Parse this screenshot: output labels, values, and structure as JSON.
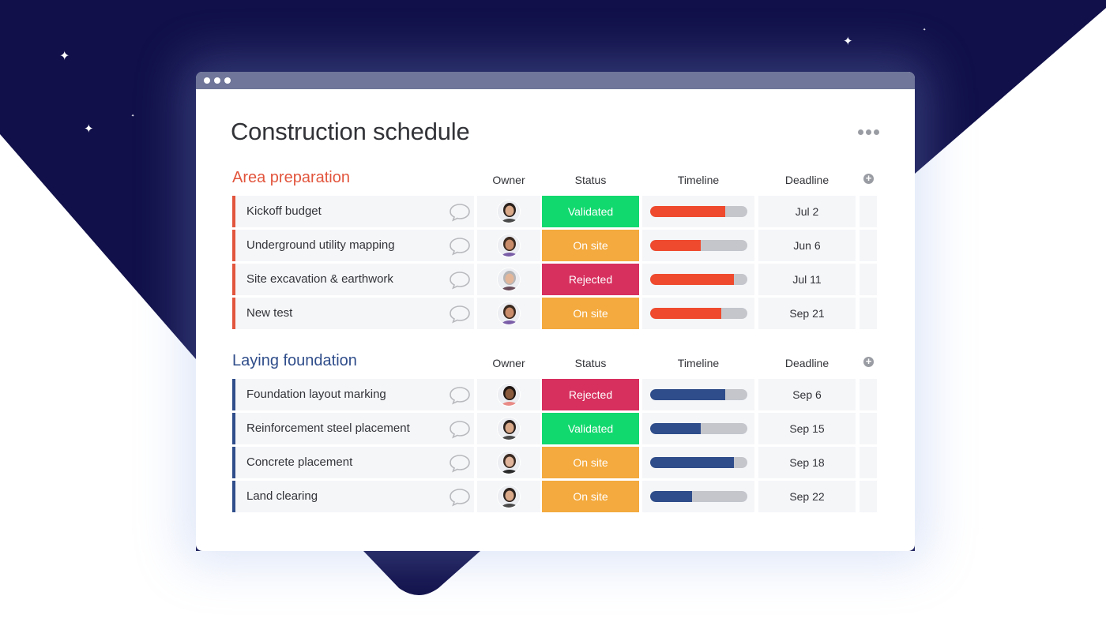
{
  "window": {
    "title": "Construction schedule",
    "titlebar_dots": 3
  },
  "columns": {
    "owner": "Owner",
    "status": "Status",
    "timeline": "Timeline",
    "deadline": "Deadline"
  },
  "colors": {
    "background_navy": "#11104a",
    "titlebar": "#6f7699",
    "group1_accent": "#e2553d",
    "group2_accent": "#2f4d8a",
    "status_validated": "#12d96e",
    "status_on_site": "#f4aa3e",
    "status_rejected": "#d72f5e",
    "timeline_red": "#ef4a2e",
    "timeline_blue": "#2f4d8a",
    "timeline_track": "#c4c6cc"
  },
  "groups": [
    {
      "title": "Area preparation",
      "color": "#e2553d",
      "rows": [
        {
          "name": "Kickoff budget",
          "owner": "woman-dark-hair",
          "status": "Validated",
          "status_color": "#12d96e",
          "timeline_pct": 77,
          "deadline": "Jul 2"
        },
        {
          "name": "Underground utility mapping",
          "owner": "man-smiling",
          "status": "On site",
          "status_color": "#f4aa3e",
          "timeline_pct": 52,
          "deadline": "Jun 6"
        },
        {
          "name": "Site excavation & earthwork",
          "owner": "man-bald",
          "status": "Rejected",
          "status_color": "#d72f5e",
          "timeline_pct": 86,
          "deadline": "Jul 11"
        },
        {
          "name": "New test",
          "owner": "man-smiling",
          "status": "On site",
          "status_color": "#f4aa3e",
          "timeline_pct": 73,
          "deadline": "Sep 21"
        }
      ]
    },
    {
      "title": "Laying foundation",
      "color": "#2f4d8a",
      "rows": [
        {
          "name": "Foundation layout marking",
          "owner": "man-short-hair",
          "status": "Rejected",
          "status_color": "#d72f5e",
          "timeline_pct": 77,
          "deadline": "Sep 6"
        },
        {
          "name": "Reinforcement steel placement",
          "owner": "woman-dark-hair",
          "status": "Validated",
          "status_color": "#12d96e",
          "timeline_pct": 52,
          "deadline": "Sep 15"
        },
        {
          "name": "Concrete placement",
          "owner": "woman-brown-hair",
          "status": "On site",
          "status_color": "#f4aa3e",
          "timeline_pct": 86,
          "deadline": "Sep 18"
        },
        {
          "name": "Land clearing",
          "owner": "woman-dark-hair",
          "status": "On site",
          "status_color": "#f4aa3e",
          "timeline_pct": 43,
          "deadline": "Sep 22"
        }
      ]
    }
  ],
  "icons": {
    "more": "more-horizontal-icon",
    "add_column": "plus-circle-icon",
    "comment": "speech-bubble-icon"
  }
}
